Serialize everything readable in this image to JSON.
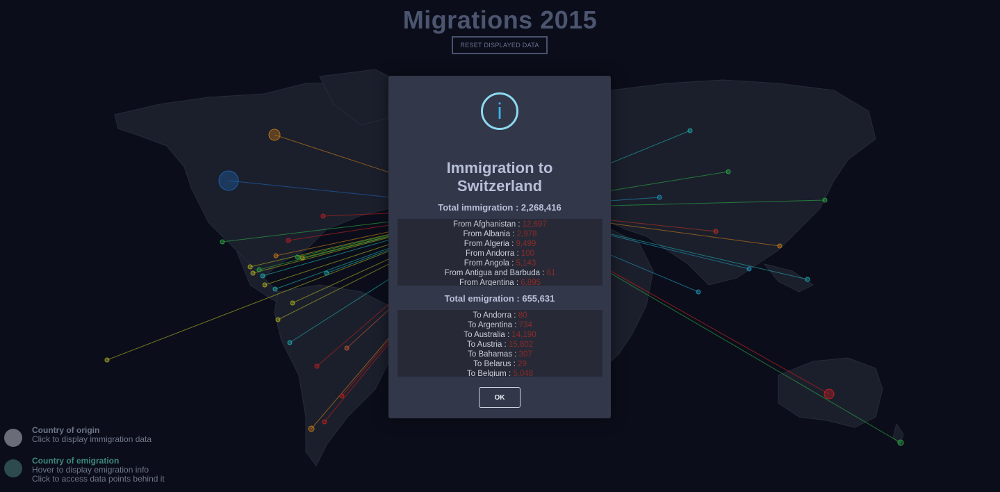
{
  "page": {
    "title": "Migrations 2015",
    "reset_label": "RESET DISPLAYED DATA"
  },
  "modal": {
    "icon": "info-icon",
    "icon_glyph": "i",
    "title_line1": "Immigration to",
    "title_line2": "Switzerland",
    "immigration_total": "Total immigration : 2,268,416",
    "immigration_rows": [
      {
        "label": "From Afghanistan : ",
        "value": "12,697"
      },
      {
        "label": "From Albania : ",
        "value": "2,978"
      },
      {
        "label": "From Algeria : ",
        "value": "9,499"
      },
      {
        "label": "From Andorra : ",
        "value": "100"
      },
      {
        "label": "From Angola : ",
        "value": "5,143"
      },
      {
        "label": "From Antigua and Barbuda : ",
        "value": "61"
      },
      {
        "label": "From Argentina : ",
        "value": "6,895"
      }
    ],
    "emigration_total": "Total emigration : 655,631",
    "emigration_rows": [
      {
        "label": "To Andorra : ",
        "value": "80"
      },
      {
        "label": "To Argentina : ",
        "value": "734"
      },
      {
        "label": "To Australia : ",
        "value": "14,190"
      },
      {
        "label": "To Austria : ",
        "value": "15,802"
      },
      {
        "label": "To Bahamas : ",
        "value": "307"
      },
      {
        "label": "To Belarus : ",
        "value": "29"
      },
      {
        "label": "To Belgium : ",
        "value": "5,048"
      }
    ],
    "ok_label": "OK"
  },
  "legend": {
    "origin_title": "Country of origin",
    "origin_sub": "Click to display immigration data",
    "origin_color": "#6a6d78",
    "emigration_title": "Country of emigration",
    "emigration_sub1": "Hover to display emigration info",
    "emigration_sub2": "Click to access data points behind it",
    "emigration_color": "#2d4a4e",
    "emigration_title_color": "#3d8a7c"
  },
  "colors": {
    "background": "#0b0e1a",
    "land": "#1b1f2c",
    "modal": "#32374a",
    "accent_icon": "#35b6e6",
    "value_red": "#8a2a2a"
  }
}
